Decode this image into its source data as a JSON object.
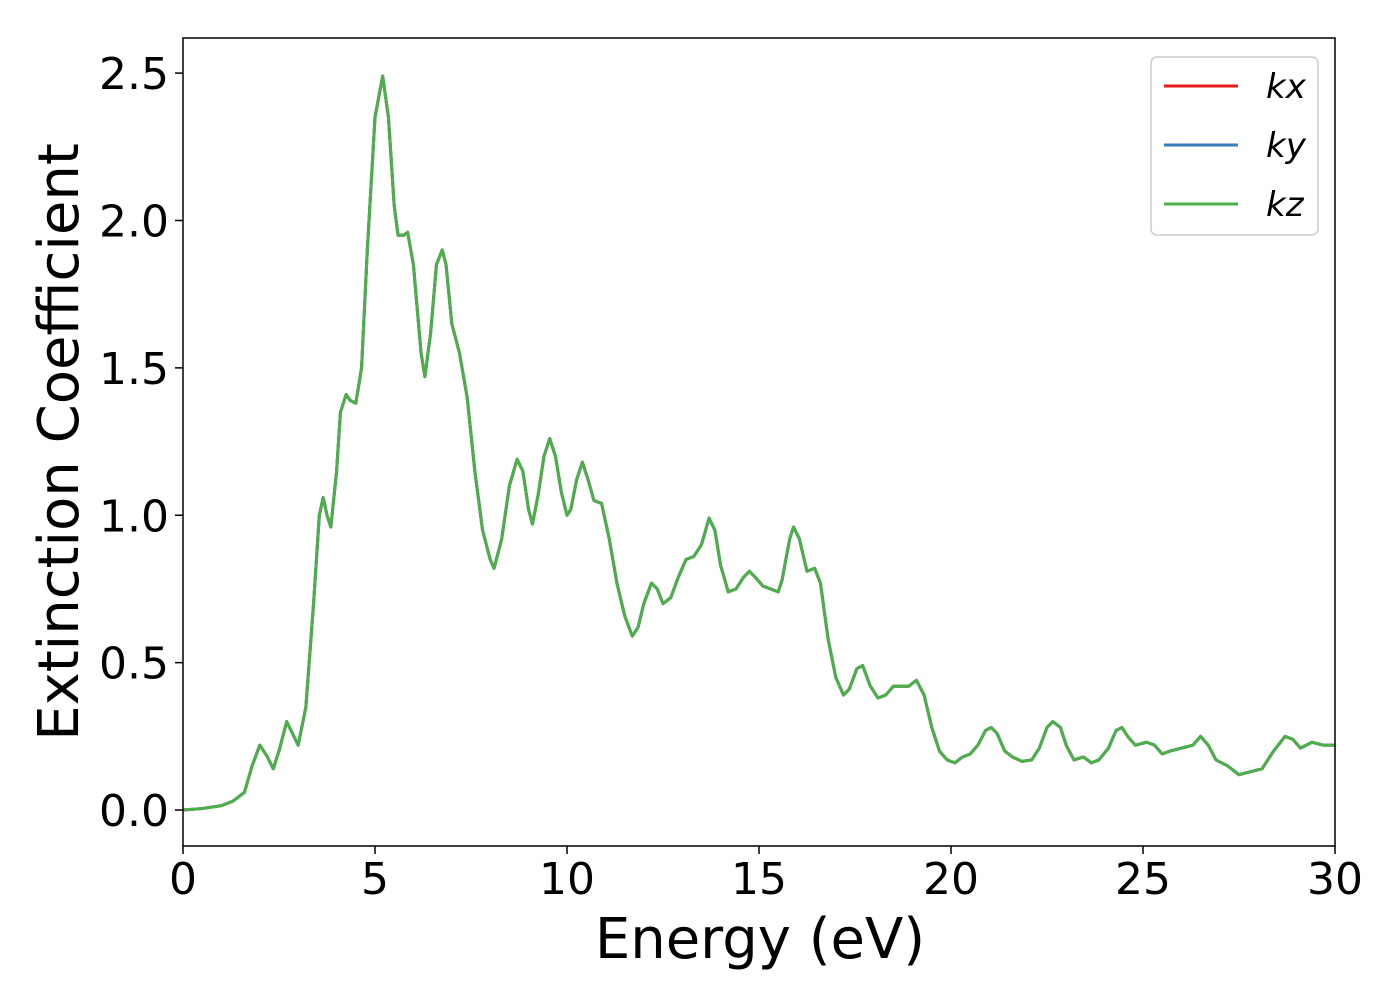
{
  "chart_data": {
    "type": "line",
    "xlabel": "Energy (eV)",
    "ylabel": "Extinction Coefficient",
    "x": [
      0,
      0.5,
      1.0,
      1.3,
      1.6,
      1.8,
      2.0,
      2.2,
      2.35,
      2.5,
      2.7,
      2.85,
      3.0,
      3.2,
      3.4,
      3.55,
      3.65,
      3.75,
      3.85,
      4.0,
      4.1,
      4.25,
      4.35,
      4.5,
      4.65,
      4.8,
      5.0,
      5.2,
      5.35,
      5.5,
      5.6,
      5.75,
      5.85,
      6.0,
      6.2,
      6.3,
      6.45,
      6.6,
      6.75,
      6.85,
      7.0,
      7.2,
      7.4,
      7.6,
      7.8,
      8.0,
      8.1,
      8.3,
      8.5,
      8.7,
      8.85,
      9.0,
      9.1,
      9.25,
      9.4,
      9.55,
      9.7,
      9.85,
      10.0,
      10.1,
      10.25,
      10.4,
      10.55,
      10.7,
      10.9,
      11.1,
      11.3,
      11.5,
      11.7,
      11.85,
      12.0,
      12.2,
      12.35,
      12.5,
      12.7,
      12.9,
      13.1,
      13.3,
      13.5,
      13.7,
      13.85,
      14.0,
      14.2,
      14.4,
      14.6,
      14.75,
      14.9,
      15.1,
      15.3,
      15.5,
      15.6,
      15.8,
      15.9,
      16.05,
      16.25,
      16.45,
      16.6,
      16.8,
      17.0,
      17.2,
      17.35,
      17.55,
      17.7,
      17.9,
      18.1,
      18.3,
      18.5,
      18.7,
      18.9,
      19.1,
      19.3,
      19.5,
      19.7,
      19.9,
      20.1,
      20.3,
      20.5,
      20.7,
      20.9,
      21.05,
      21.2,
      21.4,
      21.6,
      21.85,
      22.1,
      22.3,
      22.5,
      22.65,
      22.85,
      23.0,
      23.2,
      23.45,
      23.65,
      23.85,
      24.1,
      24.3,
      24.45,
      24.6,
      24.8,
      25.1,
      25.3,
      25.5,
      25.7,
      26.0,
      26.3,
      26.5,
      26.7,
      26.9,
      27.2,
      27.5,
      27.8,
      28.1,
      28.4,
      28.7,
      28.9,
      29.1,
      29.4,
      29.7,
      30.0
    ],
    "series": [
      {
        "name": "kx",
        "color": "#e41a1c",
        "values": [
          0.0,
          0.005,
          0.015,
          0.03,
          0.06,
          0.15,
          0.22,
          0.18,
          0.14,
          0.2,
          0.3,
          0.26,
          0.22,
          0.35,
          0.7,
          1.0,
          1.06,
          1.0,
          0.96,
          1.15,
          1.35,
          1.41,
          1.39,
          1.38,
          1.5,
          1.9,
          2.35,
          2.49,
          2.35,
          2.05,
          1.95,
          1.95,
          1.96,
          1.85,
          1.55,
          1.47,
          1.62,
          1.85,
          1.9,
          1.85,
          1.65,
          1.55,
          1.4,
          1.15,
          0.95,
          0.85,
          0.82,
          0.92,
          1.1,
          1.19,
          1.15,
          1.02,
          0.97,
          1.07,
          1.2,
          1.26,
          1.2,
          1.08,
          1.0,
          1.02,
          1.12,
          1.18,
          1.12,
          1.05,
          1.04,
          0.92,
          0.77,
          0.66,
          0.59,
          0.62,
          0.7,
          0.77,
          0.75,
          0.7,
          0.72,
          0.79,
          0.85,
          0.86,
          0.9,
          0.99,
          0.95,
          0.83,
          0.74,
          0.75,
          0.79,
          0.81,
          0.79,
          0.76,
          0.75,
          0.74,
          0.78,
          0.92,
          0.96,
          0.92,
          0.81,
          0.82,
          0.77,
          0.58,
          0.45,
          0.39,
          0.41,
          0.48,
          0.49,
          0.42,
          0.38,
          0.39,
          0.42,
          0.42,
          0.42,
          0.44,
          0.39,
          0.28,
          0.2,
          0.17,
          0.16,
          0.18,
          0.19,
          0.22,
          0.27,
          0.28,
          0.26,
          0.2,
          0.18,
          0.165,
          0.17,
          0.21,
          0.28,
          0.3,
          0.28,
          0.22,
          0.17,
          0.18,
          0.16,
          0.17,
          0.21,
          0.27,
          0.28,
          0.25,
          0.22,
          0.23,
          0.22,
          0.19,
          0.2,
          0.21,
          0.22,
          0.25,
          0.22,
          0.17,
          0.15,
          0.12,
          0.13,
          0.14,
          0.2,
          0.25,
          0.24,
          0.21,
          0.23,
          0.22,
          0.22
        ]
      },
      {
        "name": "ky",
        "color": "#377eb8",
        "values": [
          0.0,
          0.005,
          0.015,
          0.03,
          0.06,
          0.15,
          0.22,
          0.18,
          0.14,
          0.2,
          0.3,
          0.26,
          0.22,
          0.35,
          0.7,
          1.0,
          1.06,
          1.0,
          0.96,
          1.15,
          1.35,
          1.41,
          1.39,
          1.38,
          1.5,
          1.9,
          2.35,
          2.49,
          2.35,
          2.05,
          1.95,
          1.95,
          1.96,
          1.85,
          1.55,
          1.47,
          1.62,
          1.85,
          1.9,
          1.85,
          1.65,
          1.55,
          1.4,
          1.15,
          0.95,
          0.85,
          0.82,
          0.92,
          1.1,
          1.19,
          1.15,
          1.02,
          0.97,
          1.07,
          1.2,
          1.26,
          1.2,
          1.08,
          1.0,
          1.02,
          1.12,
          1.18,
          1.12,
          1.05,
          1.04,
          0.92,
          0.77,
          0.66,
          0.59,
          0.62,
          0.7,
          0.77,
          0.75,
          0.7,
          0.72,
          0.79,
          0.85,
          0.86,
          0.9,
          0.99,
          0.95,
          0.83,
          0.74,
          0.75,
          0.79,
          0.81,
          0.79,
          0.76,
          0.75,
          0.74,
          0.78,
          0.92,
          0.96,
          0.92,
          0.81,
          0.82,
          0.77,
          0.58,
          0.45,
          0.39,
          0.41,
          0.48,
          0.49,
          0.42,
          0.38,
          0.39,
          0.42,
          0.42,
          0.42,
          0.44,
          0.39,
          0.28,
          0.2,
          0.17,
          0.16,
          0.18,
          0.19,
          0.22,
          0.27,
          0.28,
          0.26,
          0.2,
          0.18,
          0.165,
          0.17,
          0.21,
          0.28,
          0.3,
          0.28,
          0.22,
          0.17,
          0.18,
          0.16,
          0.17,
          0.21,
          0.27,
          0.28,
          0.25,
          0.22,
          0.23,
          0.22,
          0.19,
          0.2,
          0.21,
          0.22,
          0.25,
          0.22,
          0.17,
          0.15,
          0.12,
          0.13,
          0.14,
          0.2,
          0.25,
          0.24,
          0.21,
          0.23,
          0.22,
          0.22
        ]
      },
      {
        "name": "kz",
        "color": "#4daf4a",
        "values": [
          0.0,
          0.005,
          0.015,
          0.03,
          0.06,
          0.15,
          0.22,
          0.18,
          0.14,
          0.2,
          0.3,
          0.26,
          0.22,
          0.35,
          0.7,
          1.0,
          1.06,
          1.0,
          0.96,
          1.15,
          1.35,
          1.41,
          1.39,
          1.38,
          1.5,
          1.9,
          2.35,
          2.49,
          2.35,
          2.05,
          1.95,
          1.95,
          1.96,
          1.85,
          1.55,
          1.47,
          1.62,
          1.85,
          1.9,
          1.85,
          1.65,
          1.55,
          1.4,
          1.15,
          0.95,
          0.85,
          0.82,
          0.92,
          1.1,
          1.19,
          1.15,
          1.02,
          0.97,
          1.07,
          1.2,
          1.26,
          1.2,
          1.08,
          1.0,
          1.02,
          1.12,
          1.18,
          1.12,
          1.05,
          1.04,
          0.92,
          0.77,
          0.66,
          0.59,
          0.62,
          0.7,
          0.77,
          0.75,
          0.7,
          0.72,
          0.79,
          0.85,
          0.86,
          0.9,
          0.99,
          0.95,
          0.83,
          0.74,
          0.75,
          0.79,
          0.81,
          0.79,
          0.76,
          0.75,
          0.74,
          0.78,
          0.92,
          0.96,
          0.92,
          0.81,
          0.82,
          0.77,
          0.58,
          0.45,
          0.39,
          0.41,
          0.48,
          0.49,
          0.42,
          0.38,
          0.39,
          0.42,
          0.42,
          0.42,
          0.44,
          0.39,
          0.28,
          0.2,
          0.17,
          0.16,
          0.18,
          0.19,
          0.22,
          0.27,
          0.28,
          0.26,
          0.2,
          0.18,
          0.165,
          0.17,
          0.21,
          0.28,
          0.3,
          0.28,
          0.22,
          0.17,
          0.18,
          0.16,
          0.17,
          0.21,
          0.27,
          0.28,
          0.25,
          0.22,
          0.23,
          0.22,
          0.19,
          0.2,
          0.21,
          0.22,
          0.25,
          0.22,
          0.17,
          0.15,
          0.12,
          0.13,
          0.14,
          0.2,
          0.25,
          0.24,
          0.21,
          0.23,
          0.22,
          0.22
        ]
      }
    ],
    "xlim": [
      0,
      30
    ],
    "xticks": [
      0,
      5,
      10,
      15,
      20,
      25,
      30
    ],
    "ylim": [
      -0.122,
      2.619
    ],
    "yticks": [
      {
        "value": 0,
        "label": "0.0"
      },
      0.5,
      {
        "value": 1,
        "label": "1.0"
      },
      1.5,
      {
        "value": 2,
        "label": "2.0"
      },
      2.5
    ],
    "grid": false,
    "legend": "upper right"
  }
}
